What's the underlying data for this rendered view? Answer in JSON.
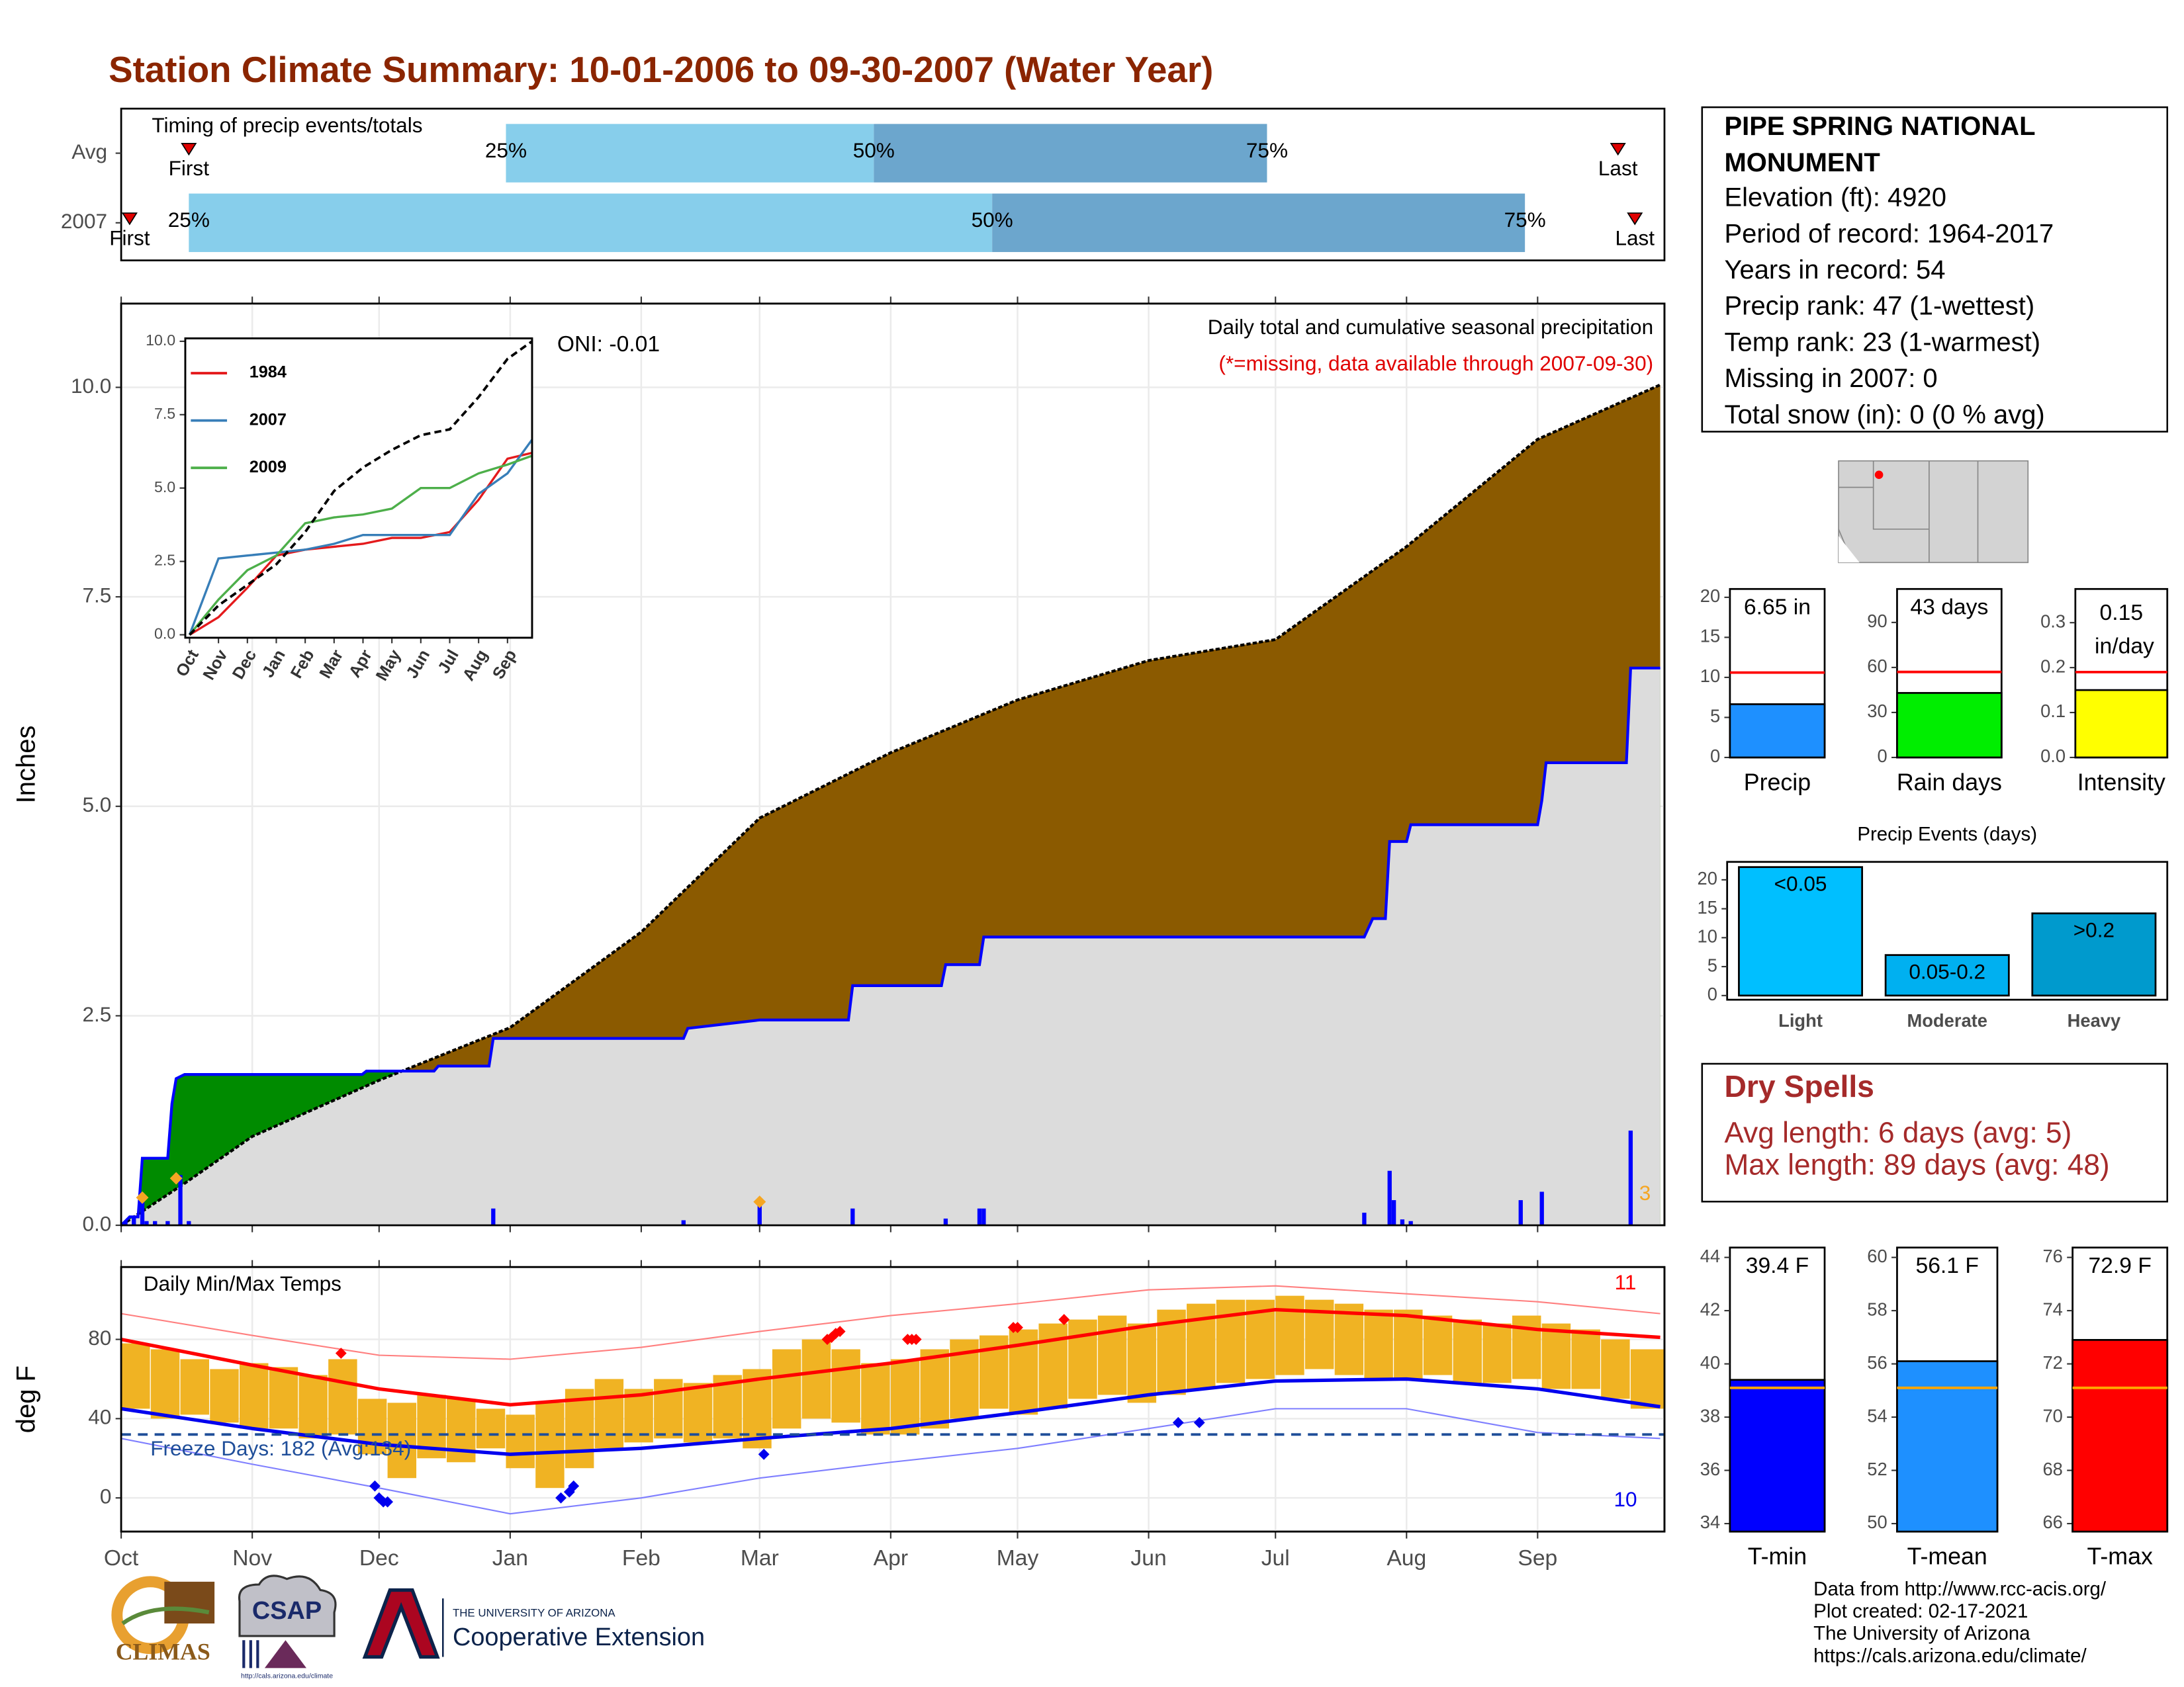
{
  "title": "Station Climate Summary: 10-01-2006 to 09-30-2007 (Water Year)",
  "chart_data": [
    {
      "type": "timing",
      "title": "Timing of precip events/totals",
      "rows": [
        "Avg",
        "2007"
      ],
      "markers": [
        "First",
        "25%",
        "50%",
        "75%",
        "Last"
      ],
      "values": [
        [
          16,
          91,
          178,
          271,
          354
        ],
        [
          2,
          16,
          206,
          332,
          358
        ]
      ],
      "colors": [
        "#87ceeb",
        "#6ca6cd"
      ],
      "marker_color": "#e00000",
      "xlim": [
        0,
        365
      ]
    },
    {
      "type": "precip",
      "title": "Daily total and cumulative seasonal precipitation",
      "subtitle": "(*=missing, data available through 2007-09-30)",
      "annotation": "ONI: -0.01",
      "ylabel": "Inches",
      "xlim": [
        0,
        365
      ],
      "xticks": [
        0,
        31,
        61,
        92,
        123,
        151,
        182,
        212,
        243,
        273,
        304,
        335
      ],
      "ylim": [
        0,
        11
      ],
      "yticks": [
        {
          "value": 0,
          "label": "0.0"
        },
        {
          "value": 2.5,
          "label": "2.5"
        },
        {
          "value": 5,
          "label": "5.0"
        },
        {
          "value": 7.5,
          "label": "7.5"
        },
        {
          "value": 10,
          "label": "10.0"
        }
      ],
      "grid": true,
      "average": {
        "x": [
          0,
          15,
          31,
          61,
          92,
          123,
          151,
          182,
          212,
          243,
          273,
          304,
          335,
          364
        ],
        "values": [
          0,
          0.5,
          1.06,
          1.73,
          2.36,
          3.5,
          4.86,
          5.64,
          6.27,
          6.74,
          6.99,
          8.1,
          9.38,
          10.03
        ],
        "color": "#000000"
      },
      "current": {
        "x": [
          0,
          2,
          4,
          5,
          11,
          12,
          13,
          15,
          57,
          58,
          74,
          75,
          87,
          88,
          133,
          134,
          151,
          172,
          173,
          194,
          195,
          203,
          204,
          294,
          296,
          299,
          300,
          304,
          305,
          335,
          336,
          337,
          356,
          357,
          364
        ],
        "values": [
          0,
          0.1,
          0.1,
          0.8,
          0.8,
          1.45,
          1.75,
          1.8,
          1.8,
          1.84,
          1.84,
          1.9,
          1.9,
          2.23,
          2.23,
          2.35,
          2.45,
          2.45,
          2.86,
          2.86,
          3.11,
          3.11,
          3.44,
          3.44,
          3.66,
          3.66,
          4.58,
          4.58,
          4.78,
          4.78,
          5.07,
          5.52,
          5.52,
          6.65,
          6.65
        ],
        "color": "#0000ff"
      },
      "fill_colors": {
        "below": "#dcdcdc",
        "deficit": "#8b5a00",
        "surplus": "#008b00"
      },
      "daily": {
        "x": [
          1,
          3,
          5,
          6,
          8,
          11,
          14,
          16,
          88,
          133,
          151,
          173,
          195,
          203,
          204,
          294,
          300,
          301,
          303,
          305,
          331,
          336,
          357
        ],
        "values": [
          0.05,
          0.1,
          0.3,
          0.05,
          0.05,
          0.05,
          0.6,
          0.05,
          0.2,
          0.06,
          0.3,
          0.2,
          0.08,
          0.2,
          0.2,
          0.15,
          0.65,
          0.3,
          0.07,
          0.05,
          0.3,
          0.4,
          1.13
        ],
        "color": "#0000ff"
      },
      "highlights": {
        "x": [
          5,
          13,
          151
        ],
        "values": [
          0.33,
          0.56,
          0.28
        ],
        "color": "#f5a623"
      },
      "highlight_count": 3
    },
    {
      "type": "line",
      "legend": "top-left",
      "xlim": [
        -0.15,
        11.85
      ],
      "xticks": [
        {
          "value": 0,
          "label": "Oct"
        },
        {
          "value": 1,
          "label": "Nov"
        },
        {
          "value": 2,
          "label": "Dec"
        },
        {
          "value": 3,
          "label": "Jan"
        },
        {
          "value": 4,
          "label": "Feb"
        },
        {
          "value": 5,
          "label": "Mar"
        },
        {
          "value": 6,
          "label": "Apr"
        },
        {
          "value": 7,
          "label": "May"
        },
        {
          "value": 8,
          "label": "Jun"
        },
        {
          "value": 9,
          "label": "Jul"
        },
        {
          "value": 10,
          "label": "Aug"
        },
        {
          "value": 11,
          "label": "Sep"
        }
      ],
      "ylim": [
        -0.1,
        10.1
      ],
      "yticks": [
        {
          "value": 0,
          "label": "0.0"
        },
        {
          "value": 2.5,
          "label": "2.5"
        },
        {
          "value": 5,
          "label": "5.0"
        },
        {
          "value": 7.5,
          "label": "7.5"
        },
        {
          "value": 10,
          "label": "10.0"
        }
      ],
      "x": [
        0,
        1,
        2,
        3,
        4,
        5,
        6,
        7,
        8,
        9,
        10,
        11,
        11.85
      ],
      "series": [
        {
          "name": "1984",
          "color": "#e41a1c",
          "values": [
            0,
            0.6,
            1.6,
            2.7,
            2.9,
            3.0,
            3.1,
            3.3,
            3.3,
            3.5,
            4.6,
            6.0,
            6.2
          ]
        },
        {
          "name": "2007",
          "color": "#377eb8",
          "values": [
            0,
            2.6,
            2.7,
            2.8,
            2.9,
            3.1,
            3.4,
            3.4,
            3.4,
            3.4,
            4.8,
            5.5,
            6.65
          ]
        },
        {
          "name": "2009",
          "color": "#4daf4a",
          "values": [
            0,
            1.2,
            2.2,
            2.7,
            3.8,
            4.0,
            4.1,
            4.3,
            5.0,
            5.0,
            5.5,
            5.8,
            6.1
          ]
        },
        {
          "color": "#000000",
          "dashed": true,
          "values": [
            0,
            1.0,
            1.7,
            2.4,
            3.5,
            4.9,
            5.7,
            6.3,
            6.8,
            7.0,
            8.1,
            9.4,
            10.0
          ]
        }
      ]
    },
    {
      "type": "temps",
      "title": "Daily Min/Max Temps",
      "ylabel": "deg F",
      "xlim": [
        0,
        365
      ],
      "xticks": [
        {
          "value": 0,
          "label": "Oct"
        },
        {
          "value": 31,
          "label": "Nov"
        },
        {
          "value": 61,
          "label": "Dec"
        },
        {
          "value": 92,
          "label": "Jan"
        },
        {
          "value": 123,
          "label": "Feb"
        },
        {
          "value": 151,
          "label": "Mar"
        },
        {
          "value": 182,
          "label": "Apr"
        },
        {
          "value": 212,
          "label": "May"
        },
        {
          "value": 243,
          "label": "Jun"
        },
        {
          "value": 273,
          "label": "Jul"
        },
        {
          "value": 304,
          "label": "Aug"
        },
        {
          "value": 335,
          "label": "Sep"
        }
      ],
      "ylim": [
        -17,
        116.5
      ],
      "yticks": [
        0,
        40,
        80
      ],
      "grid": true,
      "daily": {
        "x": [
          0,
          7,
          14,
          21,
          28,
          35,
          42,
          49,
          56,
          63,
          70,
          77,
          84,
          91,
          98,
          105,
          112,
          119,
          126,
          133,
          140,
          147,
          154,
          161,
          168,
          175,
          182,
          189,
          196,
          203,
          210,
          217,
          224,
          231,
          238,
          245,
          252,
          259,
          266,
          273,
          280,
          287,
          294,
          301,
          308,
          315,
          322,
          329,
          336,
          343,
          350,
          357
        ],
        "high": [
          78,
          75,
          70,
          65,
          68,
          66,
          62,
          70,
          50,
          48,
          52,
          50,
          45,
          42,
          48,
          55,
          60,
          55,
          60,
          58,
          62,
          65,
          75,
          80,
          75,
          68,
          70,
          75,
          80,
          82,
          85,
          88,
          90,
          92,
          88,
          95,
          98,
          100,
          100,
          102,
          100,
          98,
          95,
          95,
          92,
          90,
          88,
          92,
          88,
          85,
          80,
          75
        ],
        "low": [
          45,
          40,
          42,
          38,
          35,
          35,
          30,
          32,
          22,
          10,
          20,
          18,
          25,
          15,
          5,
          15,
          25,
          28,
          30,
          28,
          30,
          25,
          35,
          40,
          38,
          32,
          32,
          35,
          40,
          45,
          42,
          45,
          50,
          52,
          48,
          52,
          55,
          58,
          60,
          62,
          65,
          62,
          60,
          60,
          62,
          58,
          58,
          60,
          55,
          55,
          50,
          45
        ],
        "color": "#f0b323"
      },
      "normal_high": {
        "x": [
          0,
          31,
          61,
          92,
          123,
          151,
          182,
          212,
          243,
          273,
          304,
          335,
          364
        ],
        "values": [
          80,
          67,
          55,
          47,
          52,
          60,
          68,
          77,
          87,
          95,
          92,
          85,
          81
        ],
        "color": "#ff0000"
      },
      "normal_low": {
        "x": [
          0,
          31,
          61,
          92,
          123,
          151,
          182,
          212,
          243,
          273,
          304,
          335,
          364
        ],
        "values": [
          45,
          35,
          27,
          22,
          25,
          30,
          35,
          43,
          52,
          59,
          60,
          55,
          46
        ],
        "color": "#0000ee"
      },
      "record_high": {
        "x": [
          0,
          31,
          61,
          92,
          123,
          151,
          182,
          212,
          243,
          273,
          304,
          335,
          364
        ],
        "values": [
          93,
          82,
          72,
          70,
          76,
          84,
          92,
          98,
          105,
          107,
          103,
          99,
          93
        ],
        "color": "#ff7f7f"
      },
      "record_low": {
        "x": [
          0,
          31,
          61,
          92,
          123,
          151,
          182,
          212,
          243,
          273,
          304,
          335,
          364
        ],
        "values": [
          30,
          17,
          5,
          -8,
          0,
          10,
          18,
          25,
          35,
          45,
          45,
          33,
          30
        ],
        "color": "#7f7fff"
      },
      "record_high_days": {
        "x": [
          52,
          167,
          168,
          169,
          170,
          186,
          187,
          188,
          211,
          212,
          223
        ],
        "values": [
          73,
          80,
          81,
          83,
          84,
          80,
          80,
          80,
          86,
          86,
          90
        ],
        "color": "#ff0000"
      },
      "record_low_days": {
        "x": [
          60,
          61,
          62,
          63,
          104,
          106,
          107,
          152,
          250,
          255
        ],
        "values": [
          6,
          0,
          -2,
          -2,
          0,
          3,
          6,
          22,
          38,
          38
        ],
        "color": "#0000ee"
      },
      "record_high_count": 11,
      "record_low_count": 10,
      "freeze_line": 32,
      "freeze_color": "#1f4e99",
      "freeze_label": "Freeze Days: 182 (Avg:134)"
    },
    {
      "type": "mini_bar",
      "categories": [
        "Precip"
      ],
      "values": [
        6.65
      ],
      "value_labels": [
        "6.65 in"
      ],
      "avg": [
        10.6
      ],
      "ylim": [
        0,
        21.04
      ],
      "yticks": [
        0,
        5,
        10,
        15,
        20
      ],
      "color": "#1e90ff",
      "avg_color": "#ff0000"
    },
    {
      "type": "mini_bar",
      "categories": [
        "Rain days"
      ],
      "values": [
        43
      ],
      "value_labels": [
        "43 days"
      ],
      "avg": [
        57
      ],
      "ylim": [
        0,
        112.3
      ],
      "yticks": [
        0,
        30,
        60,
        90
      ],
      "color": "#00ee00",
      "avg_color": "#ff0000"
    },
    {
      "type": "mini_bar",
      "categories": [
        "Intensity"
      ],
      "values": [
        0.15
      ],
      "value_labels": [
        "0.15 in/day"
      ],
      "avg": [
        0.19
      ],
      "ylim": [
        0,
        0.375
      ],
      "yticks": [
        {
          "value": 0,
          "label": "0.0"
        },
        0.1,
        0.2,
        0.3
      ],
      "color": "#ffff00",
      "avg_color": "#ff0000"
    },
    {
      "type": "bar",
      "title": "Precip Events (days)",
      "categories": [
        "Light",
        "Moderate",
        "Heavy"
      ],
      "values": [
        22.2,
        7,
        14.2
      ],
      "bar_labels": [
        "<0.05",
        "0.05-0.2",
        ">0.2"
      ],
      "colors": [
        "#00bfff",
        "#00b0f0",
        "#009acd"
      ],
      "ylim": [
        -0.72,
        23.1
      ],
      "yticks": [
        0,
        5,
        10,
        15,
        20
      ]
    },
    {
      "type": "mini_bar",
      "categories": [
        "T-min"
      ],
      "values": [
        39.4
      ],
      "value_labels": [
        "39.4 F"
      ],
      "avg": [
        39.1
      ],
      "ylim": [
        33.7,
        44.37
      ],
      "yticks": [
        34,
        36,
        38,
        40,
        42,
        44
      ],
      "color": "#0000ff",
      "avg_color": "#ffa500"
    },
    {
      "type": "mini_bar",
      "categories": [
        "T-mean"
      ],
      "values": [
        56.1
      ],
      "value_labels": [
        "56.1 F"
      ],
      "avg": [
        55.1
      ],
      "ylim": [
        49.7,
        60.37
      ],
      "yticks": [
        50,
        52,
        54,
        56,
        58,
        60
      ],
      "color": "#1e90ff",
      "avg_color": "#ffa500"
    },
    {
      "type": "mini_bar",
      "categories": [
        "T-max"
      ],
      "values": [
        72.9
      ],
      "value_labels": [
        "72.9 F"
      ],
      "avg": [
        71.1
      ],
      "ylim": [
        65.7,
        76.37
      ],
      "yticks": [
        66,
        68,
        70,
        72,
        74,
        76
      ],
      "color": "#ff0000",
      "avg_color": "#ffa500"
    }
  ],
  "station": {
    "name": [
      "PIPE SPRING NATIONAL",
      "MONUMENT"
    ],
    "lines": [
      "Elevation (ft): 4920",
      "Period of record: 1964-2017",
      "Years in record: 54",
      "Precip rank: 47 (1-wettest)",
      "Temp rank: 23 (1-warmest)",
      "Missing in 2007: 0",
      "Total snow (in): 0 (0 % avg)"
    ]
  },
  "dry_spells": {
    "title": "Dry Spells",
    "lines": [
      "Avg length: 6 days (avg: 5)",
      "Max length: 89 days (avg: 48)"
    ]
  },
  "footer": {
    "credits": [
      "Data from http://www.rcc-acis.org/",
      "Plot created: 02-17-2021",
      "The University of Arizona",
      "https://cals.arizona.edu/climate/"
    ],
    "climas": "CLIMAS",
    "csap": "CSAP",
    "csap_url": "http://cals.arizona.edu/climate",
    "university": "THE UNIVERSITY OF ARIZONA",
    "extension": "Cooperative Extension"
  }
}
